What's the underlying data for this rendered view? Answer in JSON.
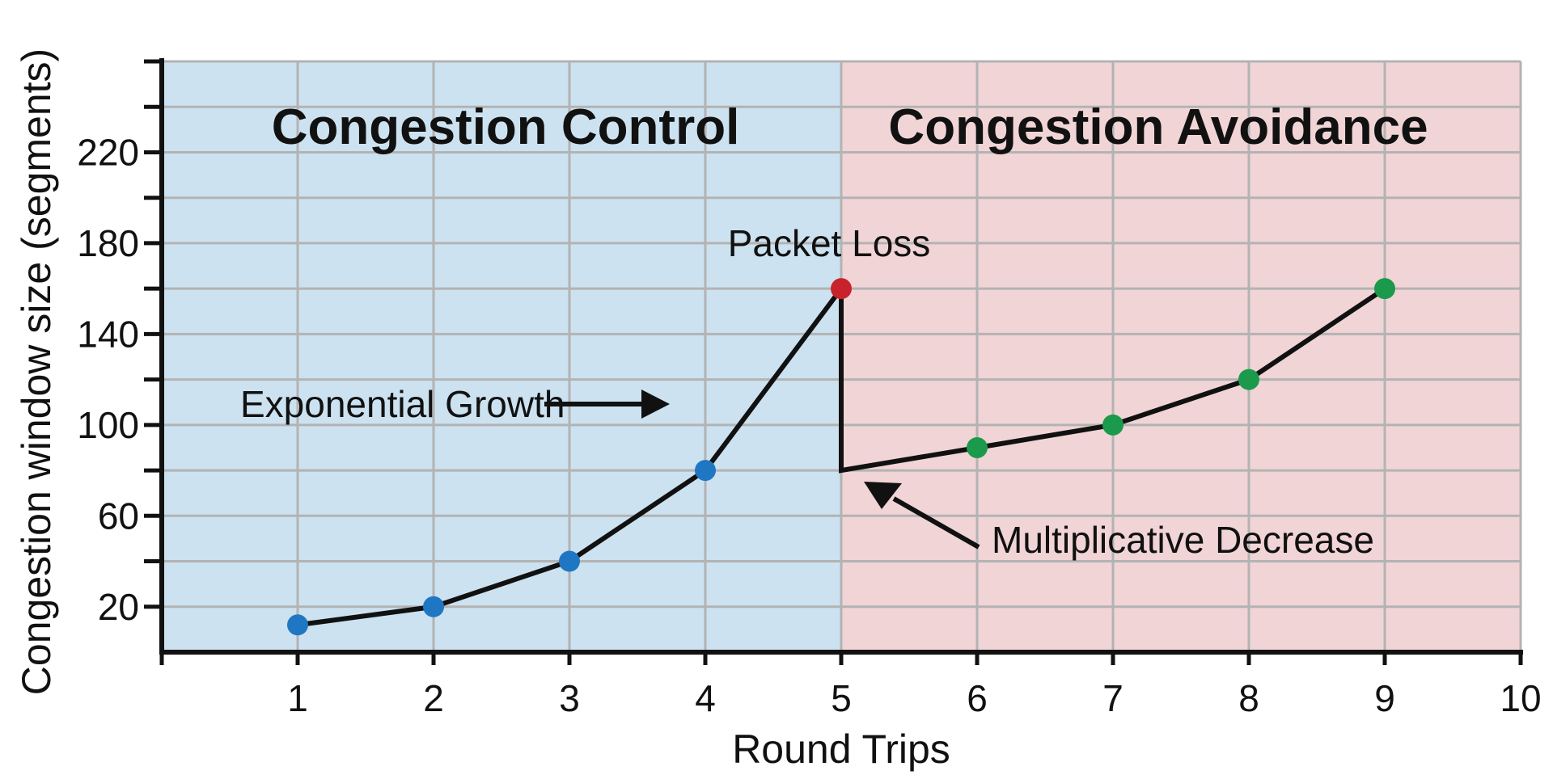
{
  "chart_data": {
    "type": "line",
    "xlabel": "Round Trips",
    "ylabel": "Congestion window size (segments)",
    "xlim": [
      0,
      10
    ],
    "ylim": [
      0,
      260
    ],
    "x_ticks": [
      1,
      2,
      3,
      4,
      5,
      6,
      7,
      8,
      9,
      10
    ],
    "y_ticks_labeled": [
      20,
      60,
      100,
      140,
      180,
      220
    ],
    "y_minor_step": 20,
    "grid": true,
    "regions": [
      {
        "label": "Congestion Control",
        "x_start": 0,
        "x_end": 5,
        "color": "#cce2f0"
      },
      {
        "label": "Congestion Avoidance",
        "x_start": 5,
        "x_end": 10,
        "color": "#f1d4d6"
      }
    ],
    "line_path": [
      {
        "x": 1,
        "y": 12
      },
      {
        "x": 2,
        "y": 20
      },
      {
        "x": 3,
        "y": 40
      },
      {
        "x": 4,
        "y": 80
      },
      {
        "x": 5,
        "y": 160
      },
      {
        "x": 5,
        "y": 80
      },
      {
        "x": 6,
        "y": 90
      },
      {
        "x": 7,
        "y": 100
      },
      {
        "x": 8,
        "y": 120
      },
      {
        "x": 9,
        "y": 160
      }
    ],
    "points": [
      {
        "x": 1,
        "y": 12,
        "color": "#1f77c4"
      },
      {
        "x": 2,
        "y": 20,
        "color": "#1f77c4"
      },
      {
        "x": 3,
        "y": 40,
        "color": "#1f77c4"
      },
      {
        "x": 4,
        "y": 80,
        "color": "#1f77c4"
      },
      {
        "x": 5,
        "y": 160,
        "color": "#c8232c"
      },
      {
        "x": 6,
        "y": 90,
        "color": "#1a9a4a"
      },
      {
        "x": 7,
        "y": 100,
        "color": "#1a9a4a"
      },
      {
        "x": 8,
        "y": 120,
        "color": "#1a9a4a"
      },
      {
        "x": 9,
        "y": 160,
        "color": "#1a9a4a"
      }
    ],
    "annotations": [
      {
        "text": "Packet Loss",
        "x": 5,
        "y": 160
      },
      {
        "text": "Exponential Growth",
        "arrow": "right"
      },
      {
        "text": "Multiplicative Decrease",
        "arrow": "up-left"
      }
    ]
  }
}
